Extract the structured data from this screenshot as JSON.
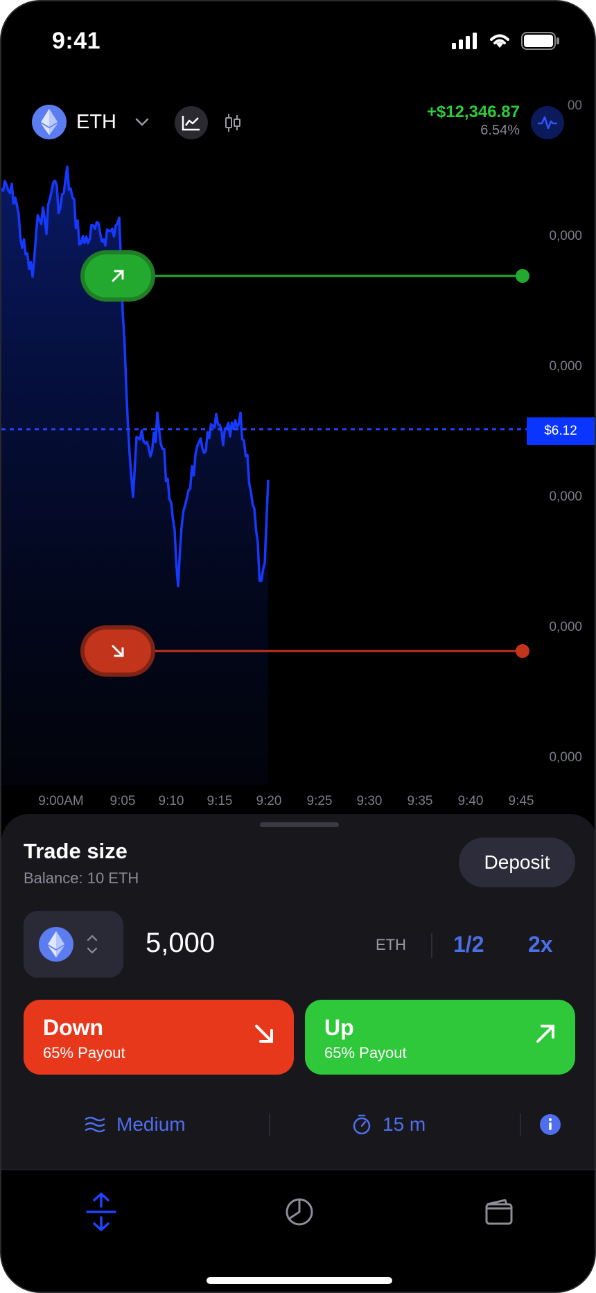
{
  "status_bar": {
    "time": "9:41"
  },
  "header": {
    "coin": "ETH",
    "pnl_value": "+$12,346.87",
    "pnl_percent": "6.54%",
    "top_axis_label": "00"
  },
  "chart": {
    "y_labels": [
      "0,000",
      "0,000",
      "0,000",
      "0,000",
      "0,000"
    ],
    "x_labels": [
      "9:00AM",
      "9:05",
      "9:10",
      "9:15",
      "9:20",
      "9:25",
      "9:30",
      "9:35",
      "9:40",
      "9:45"
    ],
    "current_price": "$6.12",
    "colors": {
      "line": "#1639ff",
      "up": "#23a92e",
      "down": "#c2341b"
    }
  },
  "trade": {
    "title": "Trade size",
    "balance": "Balance: 10 ETH",
    "deposit_label": "Deposit",
    "amount": "5,000",
    "unit": "ETH",
    "half_label": "1/2",
    "double_label": "2x",
    "down": {
      "label": "Down",
      "payout": "65% Payout"
    },
    "up": {
      "label": "Up",
      "payout": "65% Payout"
    },
    "volatility": "Medium",
    "duration": "15 m"
  },
  "tabs": [
    "trade-icon",
    "portfolio-icon",
    "wallet-icon"
  ]
}
